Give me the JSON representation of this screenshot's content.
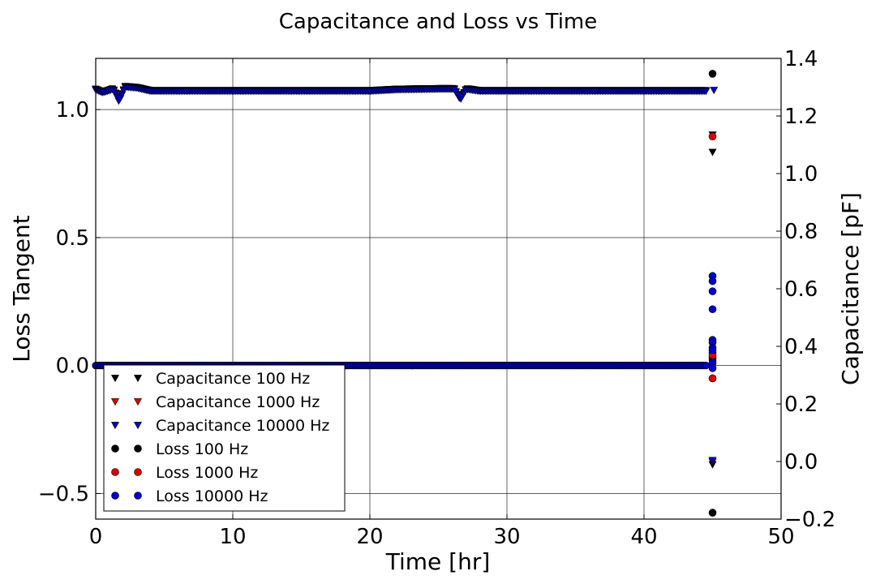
{
  "chart_data": {
    "type": "scatter",
    "title": "Capacitance and Loss vs Time",
    "xlabel": "Time [hr]",
    "ylabel_left": "Loss Tangent",
    "ylabel_right": "Capacitance [pF]",
    "xlim": [
      0,
      50
    ],
    "ylim_left": [
      -0.6,
      1.2
    ],
    "ylim_right": [
      -0.2,
      1.4
    ],
    "xticks": [
      "0",
      "10",
      "20",
      "30",
      "40",
      "50"
    ],
    "yticks_left": [
      "−0.5",
      "0.0",
      "0.5",
      "1.0"
    ],
    "yticks_right": [
      "−0.2",
      "0.0",
      "0.2",
      "0.4",
      "0.6",
      "0.8",
      "1.0",
      "1.2",
      "1.4"
    ],
    "grid": true,
    "legend_position": "lower-left",
    "series": [
      {
        "name": "Capacitance 100 Hz",
        "axis": "right",
        "marker": "triangle-down",
        "color": "#000000",
        "trend": [
          [
            0,
            1.295
          ],
          [
            0.5,
            1.285
          ],
          [
            1.0,
            1.292
          ],
          [
            1.5,
            1.302
          ],
          [
            2.0,
            1.305
          ],
          [
            3.0,
            1.301
          ],
          [
            4.0,
            1.29
          ],
          [
            10,
            1.29
          ],
          [
            20,
            1.29
          ],
          [
            22,
            1.295
          ],
          [
            25,
            1.297
          ],
          [
            27,
            1.297
          ],
          [
            28,
            1.29
          ],
          [
            44.6,
            1.29
          ]
        ],
        "dips": [
          [
            1.7,
            1.255
          ],
          [
            26.6,
            1.26
          ]
        ],
        "points": [
          [
            45.0,
            1.135
          ],
          [
            45.0,
            1.075
          ],
          [
            45.0,
            -0.01
          ]
        ]
      },
      {
        "name": "Capacitance 1000 Hz",
        "axis": "right",
        "marker": "triangle-down",
        "color": "#dd0000",
        "trend": [
          [
            0,
            1.293
          ],
          [
            0.5,
            1.283
          ],
          [
            1.0,
            1.29
          ],
          [
            1.5,
            1.3
          ],
          [
            2.0,
            1.303
          ],
          [
            3.0,
            1.299
          ],
          [
            4.0,
            1.288
          ],
          [
            10,
            1.288
          ],
          [
            20,
            1.288
          ],
          [
            22,
            1.293
          ],
          [
            25,
            1.295
          ],
          [
            27,
            1.295
          ],
          [
            28,
            1.288
          ],
          [
            44.6,
            1.288
          ]
        ],
        "dips": [
          [
            1.7,
            1.253
          ],
          [
            26.6,
            1.258
          ]
        ],
        "points": [
          [
            45.0,
            0.0
          ]
        ]
      },
      {
        "name": "Capacitance 10000 Hz",
        "axis": "right",
        "marker": "triangle-down",
        "color": "#0000cc",
        "trend": [
          [
            0,
            1.291
          ],
          [
            0.5,
            1.281
          ],
          [
            1.0,
            1.288
          ],
          [
            1.5,
            1.298
          ],
          [
            2.0,
            1.301
          ],
          [
            3.0,
            1.297
          ],
          [
            4.0,
            1.286
          ],
          [
            10,
            1.286
          ],
          [
            20,
            1.286
          ],
          [
            22,
            1.291
          ],
          [
            25,
            1.293
          ],
          [
            27,
            1.293
          ],
          [
            28,
            1.286
          ],
          [
            44.6,
            1.286
          ]
        ],
        "dips": [
          [
            1.7,
            1.25
          ],
          [
            26.6,
            1.256
          ]
        ],
        "points": [
          [
            45.1,
            1.29
          ],
          [
            45.0,
            0.005
          ]
        ]
      },
      {
        "name": "Loss 100 Hz",
        "axis": "left",
        "marker": "circle",
        "color": "#000000",
        "trend": [
          [
            0,
            0.0
          ],
          [
            44.6,
            0.0
          ]
        ],
        "dips": [],
        "points": [
          [
            45.0,
            1.14
          ],
          [
            45.0,
            0.02
          ],
          [
            45.0,
            0.03
          ],
          [
            45.0,
            -0.575
          ]
        ]
      },
      {
        "name": "Loss 1000 Hz",
        "axis": "left",
        "marker": "circle",
        "color": "#dd0000",
        "trend": [
          [
            0,
            0.0
          ],
          [
            44.6,
            0.0
          ]
        ],
        "dips": [],
        "points": [
          [
            45.0,
            0.895
          ],
          [
            45.0,
            0.05
          ],
          [
            45.0,
            0.04
          ],
          [
            45.0,
            -0.05
          ]
        ]
      },
      {
        "name": "Loss 10000 Hz",
        "axis": "left",
        "marker": "circle",
        "color": "#0000cc",
        "trend": [
          [
            0,
            0.0
          ],
          [
            44.6,
            0.0
          ]
        ],
        "dips": [],
        "points": [
          [
            45.0,
            0.35
          ],
          [
            45.0,
            0.33
          ],
          [
            45.0,
            0.29
          ],
          [
            45.0,
            0.22
          ],
          [
            45.0,
            0.1
          ],
          [
            45.0,
            0.09
          ],
          [
            45.0,
            0.07
          ],
          [
            45.0,
            0.06
          ],
          [
            45.0,
            0.01
          ],
          [
            45.0,
            -0.01
          ]
        ]
      }
    ]
  }
}
